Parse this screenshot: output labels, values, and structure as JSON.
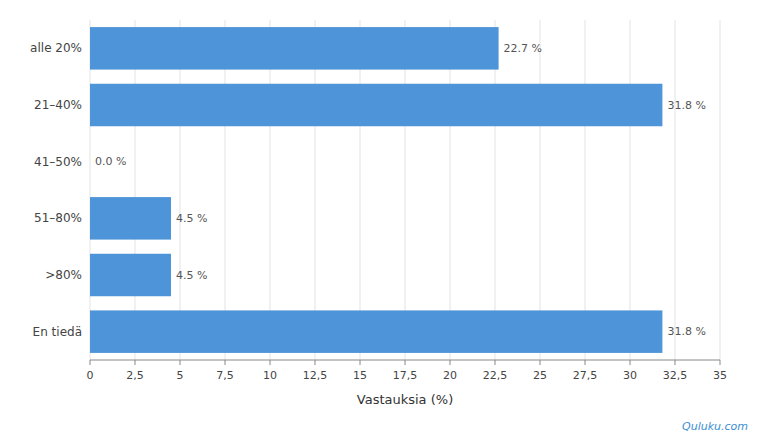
{
  "chart_data": {
    "type": "bar",
    "orientation": "horizontal",
    "categories": [
      "En tiedä",
      ">80%",
      "51–80%",
      "41–50%",
      "21–40%",
      "alle 20%"
    ],
    "values": [
      31.8,
      4.5,
      4.5,
      0.0,
      31.8,
      22.7
    ],
    "value_labels": [
      "31.8 %",
      "4.5 %",
      "4.5 %",
      "0.0 %",
      "31.8 %",
      "22.7 %"
    ],
    "data_labels": true,
    "color": "#4d94d9",
    "xlabel": "Vastauksia (%)",
    "xlim": [
      0,
      35
    ],
    "xticks": [
      0,
      {
        "value": 2.5,
        "label": "2,5"
      },
      5,
      {
        "value": 7.5,
        "label": "7,5"
      },
      10,
      {
        "value": 12.5,
        "label": "12,5"
      },
      15,
      {
        "value": 17.5,
        "label": "17,5"
      },
      20,
      {
        "value": 22.5,
        "label": "22,5"
      },
      25,
      {
        "value": 27.5,
        "label": "27,5"
      },
      30,
      {
        "value": 32.5,
        "label": "32,5"
      },
      35
    ],
    "grid": true,
    "annotations": [
      "Quluku.com"
    ]
  }
}
